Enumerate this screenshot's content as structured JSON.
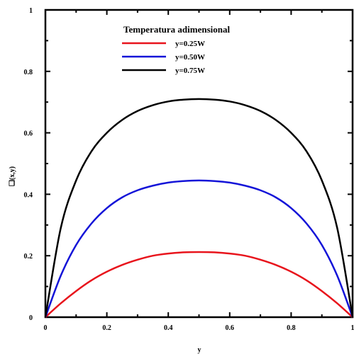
{
  "chart_data": {
    "type": "line",
    "xlabel": "y",
    "ylabel": "❑(x,y)",
    "xlim": [
      0,
      1
    ],
    "ylim": [
      0,
      1
    ],
    "x_ticks": [
      "0",
      "0.2",
      "0.4",
      "0.6",
      "0.8",
      "1"
    ],
    "y_ticks": [
      "0",
      "0.2",
      "0.4",
      "0.6",
      "0.8",
      "1"
    ],
    "legend": {
      "title": "Temperatura adimensional",
      "placement": "top-center"
    },
    "grid": false,
    "x": [
      0,
      0.05,
      0.1,
      0.15,
      0.2,
      0.25,
      0.3,
      0.35,
      0.4,
      0.45,
      0.5,
      0.55,
      0.6,
      0.65,
      0.7,
      0.75,
      0.8,
      0.85,
      0.9,
      0.95,
      1
    ],
    "series": [
      {
        "name": "y=0.25W",
        "color": "#e8141c",
        "values": [
          0,
          0.045,
          0.085,
          0.12,
          0.148,
          0.17,
          0.187,
          0.2,
          0.207,
          0.211,
          0.212,
          0.211,
          0.207,
          0.2,
          0.187,
          0.17,
          0.148,
          0.12,
          0.085,
          0.045,
          0
        ]
      },
      {
        "name": "y=0.50W",
        "color": "#1414d8",
        "values": [
          0,
          0.135,
          0.235,
          0.305,
          0.355,
          0.39,
          0.413,
          0.428,
          0.438,
          0.443,
          0.445,
          0.443,
          0.438,
          0.428,
          0.413,
          0.39,
          0.355,
          0.305,
          0.235,
          0.135,
          0
        ]
      },
      {
        "name": "y=0.75W",
        "color": "#000000",
        "values": [
          0,
          0.29,
          0.445,
          0.54,
          0.6,
          0.642,
          0.671,
          0.69,
          0.702,
          0.708,
          0.71,
          0.708,
          0.702,
          0.69,
          0.671,
          0.642,
          0.6,
          0.54,
          0.445,
          0.29,
          0
        ]
      }
    ]
  }
}
